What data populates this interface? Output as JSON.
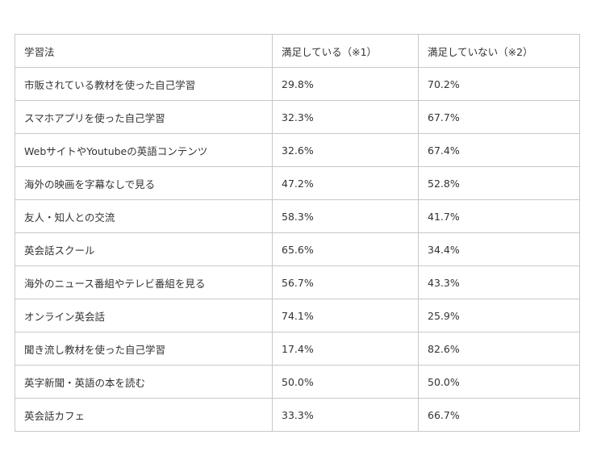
{
  "table": {
    "headers": [
      "学習法",
      "満足している（※1）",
      "満足していない（※2）"
    ],
    "rows": [
      [
        "市販されている教材を使った自己学習",
        "29.8%",
        "70.2%"
      ],
      [
        "スマホアプリを使った自己学習",
        "32.3%",
        "67.7%"
      ],
      [
        "WebサイトやYoutubeの英語コンテンツ",
        "32.6%",
        "67.4%"
      ],
      [
        "海外の映画を字幕なしで見る",
        "47.2%",
        "52.8%"
      ],
      [
        "友人・知人との交流",
        "58.3%",
        "41.7%"
      ],
      [
        "英会話スクール",
        "65.6%",
        "34.4%"
      ],
      [
        "海外のニュース番組やテレビ番組を見る",
        "56.7%",
        "43.3%"
      ],
      [
        "オンライン英会話",
        "74.1%",
        "25.9%"
      ],
      [
        "聞き流し教材を使った自己学習",
        "17.4%",
        "82.6%"
      ],
      [
        "英字新聞・英語の本を読む",
        "50.0%",
        "50.0%"
      ],
      [
        "英会話カフェ",
        "33.3%",
        "66.7%"
      ]
    ]
  }
}
